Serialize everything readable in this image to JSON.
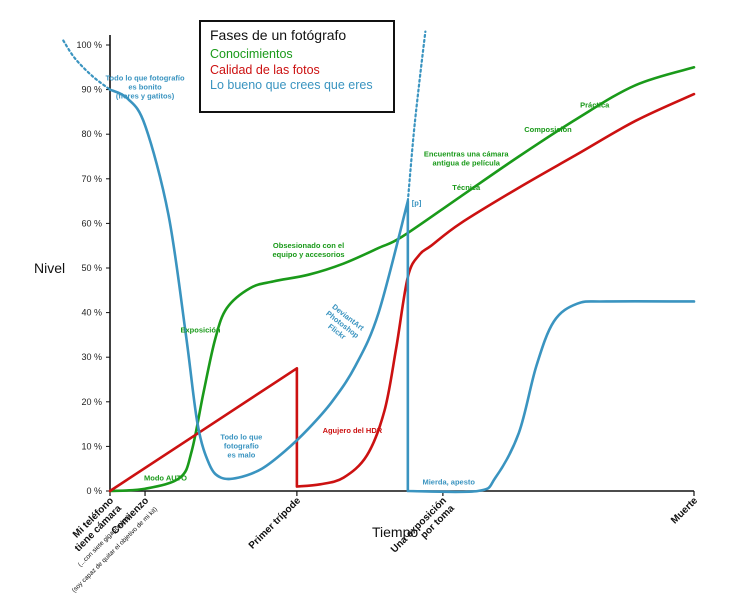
{
  "chart_data": {
    "type": "line",
    "title": "",
    "ylabel": "Nivel",
    "xlabel": "Tiempo",
    "ylim": [
      0,
      100
    ],
    "xlim": [
      0,
      100
    ],
    "y_ticks": [
      "0 %",
      "10 %",
      "20 %",
      "30 %",
      "40 %",
      "50 %",
      "60 %",
      "70 %",
      "80 %",
      "90 %",
      "100 %"
    ],
    "grid": false,
    "legend_position": "top-center",
    "legend_title": "Fases de un fotógrafo",
    "categories": [
      {
        "x": 0,
        "label": "Mi teléfono tiene cámara",
        "sub": "(...con siete gigapíxeles)"
      },
      {
        "x": 6,
        "label": "Comienzo",
        "sub": "(soy capaz de quitar el objetivo de mi kit)"
      },
      {
        "x": 32,
        "label": "Primer trípode",
        "sub": ""
      },
      {
        "x": 57,
        "label": "Una exposición por toma",
        "sub": ""
      },
      {
        "x": 100,
        "label": "Muerte",
        "sub": ""
      }
    ],
    "series": [
      {
        "name": "Conocimientos",
        "color": "#1a9a1a",
        "x": [
          0,
          6,
          12,
          14,
          16,
          18,
          20,
          24,
          28,
          34,
          40,
          46,
          50,
          60,
          70,
          80,
          90,
          100
        ],
        "y": [
          0,
          0.5,
          3,
          9,
          22,
          34,
          41,
          45.5,
          47,
          48.5,
          51,
          54.5,
          57,
          66,
          75,
          83.5,
          91,
          95
        ]
      },
      {
        "name": "Calidad de las fotos",
        "color": "#cc1111",
        "x": [
          0,
          32,
          32,
          36,
          40,
          44,
          47,
          49,
          51,
          53,
          55,
          60,
          70,
          80,
          90,
          100
        ],
        "y": [
          0,
          27.5,
          1,
          1.5,
          3,
          8,
          18,
          32,
          48,
          53,
          55,
          60,
          68,
          75.5,
          83,
          89
        ]
      },
      {
        "name": "Lo bueno que crees que eres",
        "color": "#3a94c0",
        "x": [
          0,
          3,
          6,
          10,
          13,
          15,
          17,
          19,
          22,
          26,
          30,
          34,
          38,
          42,
          46,
          51,
          51,
          63,
          66,
          70,
          73,
          76,
          80,
          85,
          100
        ],
        "y": [
          90,
          88,
          82,
          62,
          35,
          15,
          6,
          3,
          3,
          5,
          9,
          14,
          20,
          28,
          40,
          65,
          0,
          0,
          3,
          13,
          28,
          38,
          42,
          42.5,
          42.5
        ],
        "off_scale_dotted": [
          {
            "x": [
              -8,
              -6,
              -3,
              0
            ],
            "y": [
              101,
              97,
              93,
              90
            ]
          },
          {
            "x": [
              51,
              52,
              53,
              54
            ],
            "y": [
              65,
              80,
              92,
              103
            ]
          }
        ]
      }
    ],
    "annotations": [
      {
        "x": 6,
        "y": 92,
        "color": "#3a94c0",
        "lines": [
          "Todo lo que fotografío",
          "es bonito",
          "(flores y gatitos)"
        ]
      },
      {
        "x": 15.5,
        "y": 35.5,
        "color": "#1a9a1a",
        "lines": [
          "Exposición"
        ]
      },
      {
        "x": 9.5,
        "y": 2.3,
        "color": "#1a9a1a",
        "lines": [
          "Modo AUTO"
        ]
      },
      {
        "x": 22.5,
        "y": 11.5,
        "color": "#3a94c0",
        "lines": [
          "Todo lo que",
          "fotografío",
          "es malo"
        ]
      },
      {
        "x": 34,
        "y": 54.5,
        "color": "#1a9a1a",
        "lines": [
          "Obsesionado con el",
          "equipo y accesorios"
        ]
      },
      {
        "x": 40.5,
        "y": 38.5,
        "color": "#3a94c0",
        "lines": [
          "DeviantArt",
          "Photoshop",
          "Flickr"
        ],
        "rotate": 38
      },
      {
        "x": 41.5,
        "y": 13,
        "color": "#cc1111",
        "lines": [
          "Agujero del HDR"
        ]
      },
      {
        "x": 52.5,
        "y": 64,
        "color": "#3a94c0",
        "lines": [
          "[p]"
        ]
      },
      {
        "x": 58,
        "y": 1.5,
        "color": "#3a94c0",
        "lines": [
          "Mierda, apesto"
        ]
      },
      {
        "x": 61,
        "y": 75,
        "color": "#1a9a1a",
        "lines": [
          "Encuentras una cámara",
          "antigua de película"
        ]
      },
      {
        "x": 61,
        "y": 67.5,
        "color": "#1a9a1a",
        "lines": [
          "Técnica"
        ]
      },
      {
        "x": 75,
        "y": 80.5,
        "color": "#1a9a1a",
        "lines": [
          "Composición"
        ]
      },
      {
        "x": 83,
        "y": 86,
        "color": "#1a9a1a",
        "lines": [
          "Práctica"
        ]
      }
    ]
  }
}
